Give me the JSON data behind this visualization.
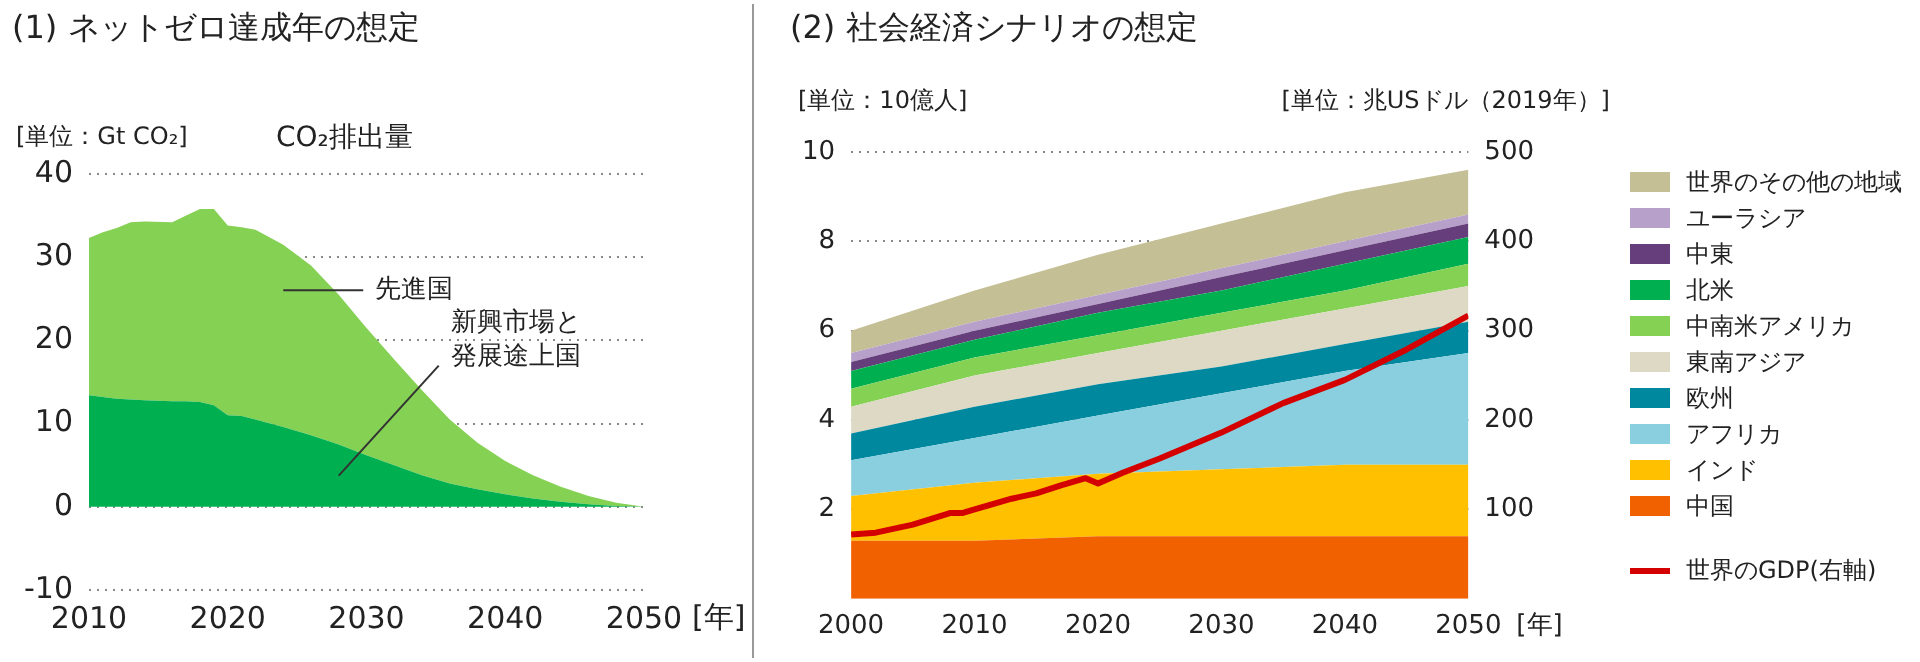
{
  "chart_data": [
    {
      "type": "area",
      "title": "(1) ネットゼロ達成年の想定",
      "subtitle": "CO₂排出量",
      "ylabel": "[単位：Gt CO₂]",
      "xlabel": "[年]",
      "stacked": true,
      "grid": "y",
      "legend": false,
      "x": [
        2010,
        2011,
        2012,
        2013,
        2014,
        2016,
        2017,
        2018,
        2019,
        2020,
        2021,
        2022,
        2024,
        2026,
        2028,
        2030,
        2032,
        2034,
        2036,
        2038,
        2040,
        2042,
        2044,
        2046,
        2048,
        2050
      ],
      "xlim": [
        2010,
        2050
      ],
      "xticks": [
        2010,
        2020,
        2030,
        2040,
        2050
      ],
      "ylim": [
        -10,
        40
      ],
      "yticks": [
        -10,
        0,
        10,
        20,
        30,
        40
      ],
      "series": [
        {
          "name": "新興市場と発展途上国",
          "color": "#00b050",
          "values": [
            13.4,
            13.2,
            13,
            12.9,
            12.8,
            12.7,
            12.7,
            12.6,
            12.2,
            11.0,
            10.9,
            10.5,
            9.6,
            8.6,
            7.5,
            6.2,
            5.0,
            3.8,
            2.8,
            2.1,
            1.5,
            1.0,
            0.6,
            0.3,
            0.1,
            0
          ]
        },
        {
          "name": "先進国",
          "color": "#84d154",
          "values": [
            18.9,
            19.8,
            20.5,
            21.3,
            21.5,
            21.5,
            22.3,
            23.2,
            23.6,
            22.8,
            22.7,
            22.8,
            21.9,
            20.4,
            18.0,
            15.3,
            12.7,
            10.2,
            7.7,
            5.6,
            4.0,
            2.8,
            1.8,
            1.0,
            0.4,
            0
          ]
        }
      ]
    },
    {
      "type": "area",
      "title": "(2) 社会経済シナリオの想定",
      "ylabel": "[単位：10億人]",
      "y2label": "[単位：兆USドル（2019年）]",
      "xlabel": "[年]",
      "stacked": true,
      "grid": "y",
      "legend": "right",
      "x": [
        2000,
        2010,
        2020,
        2030,
        2040,
        2050
      ],
      "xlim": [
        2000,
        2050
      ],
      "xticks": [
        2000,
        2010,
        2020,
        2030,
        2040,
        2050
      ],
      "ylim": [
        0,
        10
      ],
      "yticks": [
        2,
        4,
        6,
        8,
        10
      ],
      "y2lim": [
        0,
        500
      ],
      "y2ticks": [
        100,
        200,
        300,
        400,
        500
      ],
      "series": [
        {
          "name": "中国",
          "color": "#f26100",
          "values": [
            1.3,
            1.3,
            1.4,
            1.4,
            1.4,
            1.4
          ]
        },
        {
          "name": "インド",
          "color": "#ffc000",
          "values": [
            1.0,
            1.3,
            1.4,
            1.5,
            1.6,
            1.6
          ]
        },
        {
          "name": "アフリカ",
          "color": "#8acfe0",
          "values": [
            0.8,
            1.0,
            1.3,
            1.7,
            2.1,
            2.5
          ]
        },
        {
          "name": "欧州",
          "color": "#00889e",
          "values": [
            0.6,
            0.7,
            0.7,
            0.6,
            0.6,
            0.7
          ]
        },
        {
          "name": "東南アジア",
          "color": "#ddd9c4",
          "values": [
            0.6,
            0.7,
            0.7,
            0.8,
            0.8,
            0.8
          ]
        },
        {
          "name": "中南米アメリカ",
          "color": "#84d154",
          "values": [
            0.4,
            0.4,
            0.4,
            0.4,
            0.4,
            0.5
          ]
        },
        {
          "name": "北米",
          "color": "#00b050",
          "values": [
            0.4,
            0.4,
            0.5,
            0.5,
            0.6,
            0.6
          ]
        },
        {
          "name": "中東",
          "color": "#673e7c",
          "values": [
            0.2,
            0.2,
            0.2,
            0.3,
            0.3,
            0.3
          ]
        },
        {
          "name": "ユーラシア",
          "color": "#b7a1cb",
          "values": [
            0.2,
            0.2,
            0.2,
            0.2,
            0.2,
            0.2
          ]
        },
        {
          "name": "世界のその他の地域",
          "color": "#c4bf95",
          "values": [
            0.5,
            0.7,
            0.9,
            1.0,
            1.1,
            1.0
          ]
        },
        {
          "name": "世界のGDP(右軸)",
          "type": "line",
          "axis": "y2",
          "color": "#d40000",
          "x": [
            2000,
            2002,
            2005,
            2008,
            2009,
            2010,
            2013,
            2015,
            2017,
            2019,
            2020,
            2022,
            2025,
            2030,
            2035,
            2040,
            2045,
            2050
          ],
          "values": [
            72,
            74,
            83,
            96,
            96,
            100,
            112,
            118,
            127,
            135,
            129,
            141,
            157,
            186,
            219,
            245,
            279,
            317
          ]
        }
      ]
    }
  ]
}
